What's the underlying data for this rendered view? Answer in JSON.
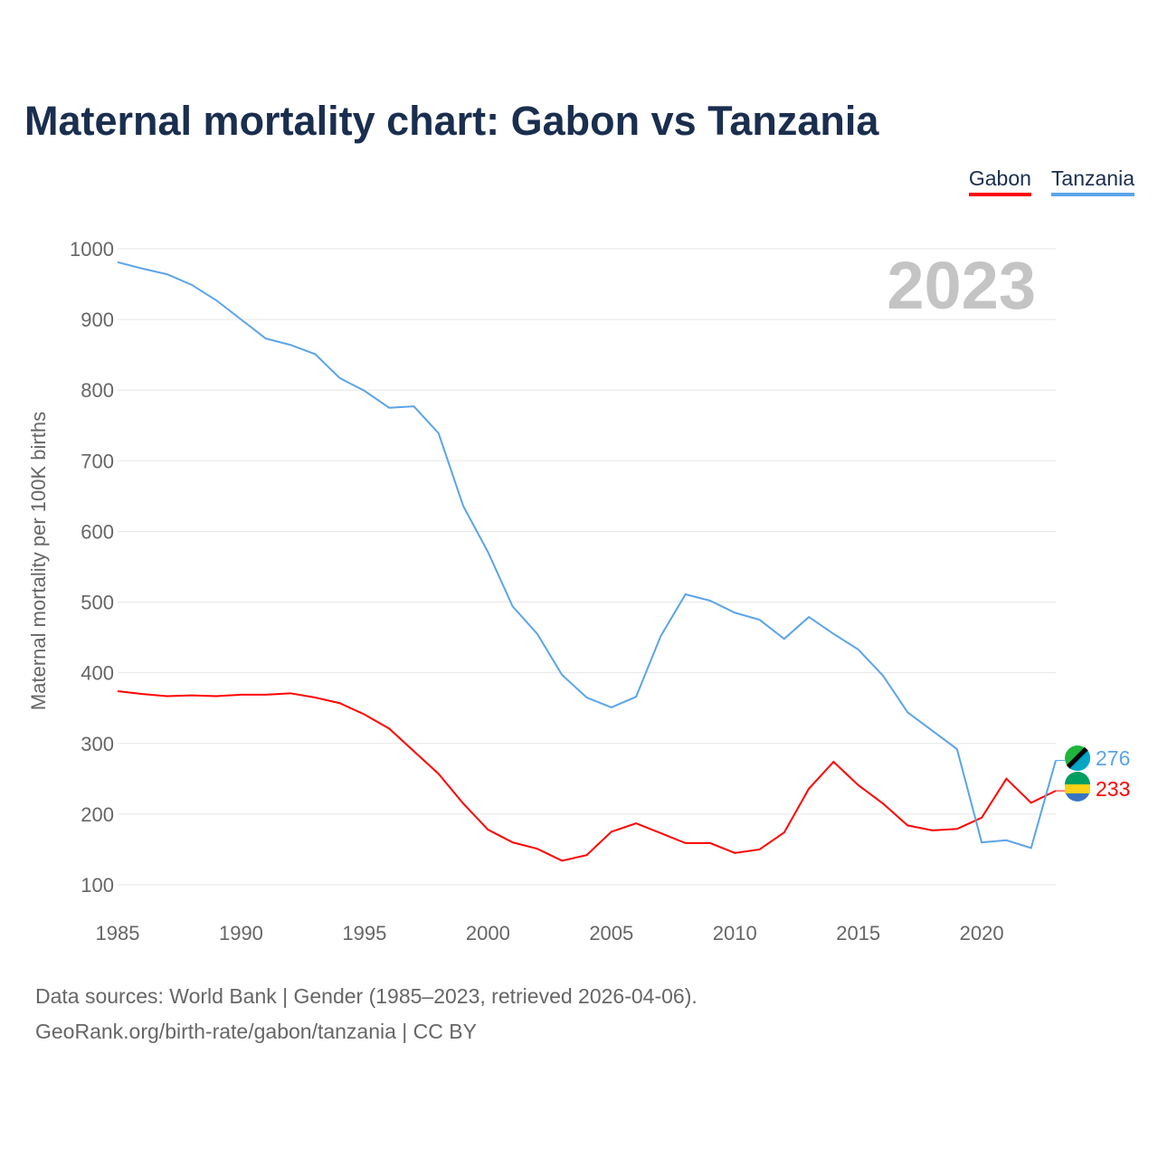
{
  "title": "Maternal mortality chart: Gabon vs Tanzania",
  "footer": {
    "line1": "Data sources: World Bank | Gender (1985–2023, retrieved 2026-04-06).",
    "line2": "GeoRank.org/birth-rate/gabon/tanzania | CC BY"
  },
  "chart_data": {
    "type": "line",
    "title": "Maternal mortality chart: Gabon vs Tanzania",
    "ylabel": "Maternal mortality per 100K births",
    "xlabel": "",
    "year_label": "2023",
    "xlim": [
      1985,
      2023
    ],
    "ylim": [
      100,
      1000
    ],
    "xticks": [
      "1985",
      "1990",
      "1995",
      "2000",
      "2005",
      "2010",
      "2015",
      "2020"
    ],
    "yticks": [
      "100",
      "200",
      "300",
      "400",
      "500",
      "600",
      "700",
      "800",
      "900",
      "1000"
    ],
    "legend_position": "top-right",
    "x": [
      1985,
      1986,
      1987,
      1988,
      1989,
      1990,
      1991,
      1992,
      1993,
      1994,
      1995,
      1996,
      1997,
      1998,
      1999,
      2000,
      2001,
      2002,
      2003,
      2004,
      2005,
      2006,
      2007,
      2008,
      2009,
      2010,
      2011,
      2012,
      2013,
      2014,
      2015,
      2016,
      2017,
      2018,
      2019,
      2020,
      2021,
      2022,
      2023
    ],
    "series": [
      {
        "name": "Gabon",
        "color": "#ff0000",
        "end_label": "233",
        "values": [
          374,
          370,
          367,
          368,
          367,
          369,
          369,
          371,
          365,
          357,
          341,
          321,
          289,
          257,
          215,
          178,
          160,
          151,
          134,
          142,
          175,
          187,
          173,
          159,
          159,
          145,
          150,
          174,
          236,
          274,
          241,
          215,
          184,
          177,
          179,
          195,
          250,
          216,
          233
        ]
      },
      {
        "name": "Tanzania",
        "color": "#5ba4ea",
        "end_label": "276",
        "values": [
          981,
          972,
          964,
          949,
          927,
          900,
          873,
          864,
          851,
          817,
          799,
          775,
          777,
          739,
          636,
          571,
          494,
          455,
          397,
          365,
          351,
          366,
          452,
          511,
          502,
          485,
          475,
          448,
          479,
          455,
          433,
          396,
          344,
          318,
          292,
          160,
          163,
          152,
          276
        ]
      }
    ]
  }
}
